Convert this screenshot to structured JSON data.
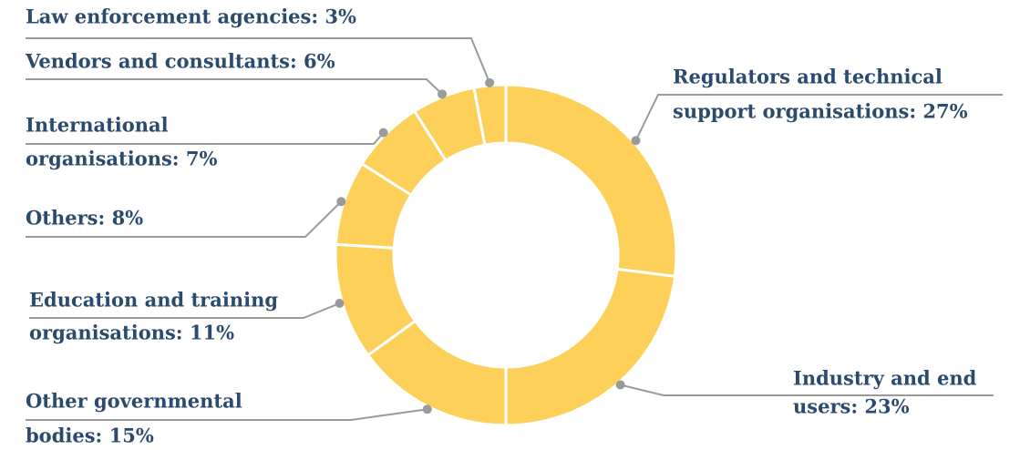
{
  "chart_data": {
    "type": "donut",
    "values": [
      27,
      23,
      15,
      11,
      8,
      7,
      6,
      3
    ],
    "value_labels": [
      [
        "Regulators and technical",
        "support organisations: 27%"
      ],
      [
        "Industry and end",
        "users: 23%"
      ],
      [
        "Other governmental",
        "bodies: 15%"
      ],
      [
        "Education and training",
        "organisations: 11%"
      ],
      [
        "Others: 8%"
      ],
      [
        "International",
        "organisations: 7%"
      ],
      [
        "Vendors and consultants: 6%"
      ],
      [
        "Law enforcement agencies: 3%"
      ]
    ],
    "color": "#fdd05a"
  }
}
